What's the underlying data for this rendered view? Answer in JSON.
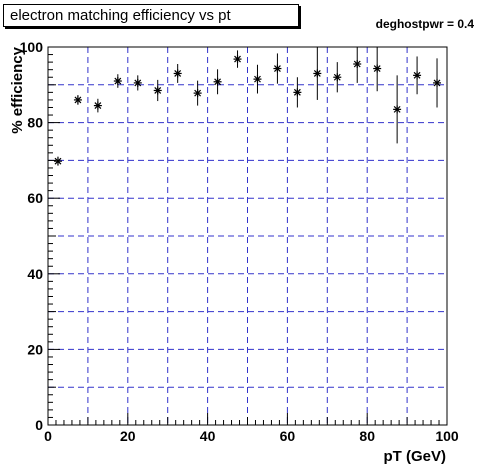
{
  "chart_data": {
    "type": "scatter",
    "title": "electron matching efficiency vs pt",
    "annotation": "deghostpwr = 0.4",
    "xlabel": "pT (GeV)",
    "ylabel": "% efficiency",
    "xlim": [
      0,
      100
    ],
    "ylim": [
      0,
      100
    ],
    "x_ticks": [
      0,
      20,
      40,
      60,
      80,
      100
    ],
    "y_ticks": [
      0,
      20,
      40,
      60,
      80,
      100
    ],
    "grid": true,
    "colors": {
      "grid": "#3333cc",
      "marker": "#000000"
    },
    "series": [
      {
        "marker": "star",
        "x": [
          2.5,
          7.5,
          12.5,
          17.5,
          22.5,
          27.5,
          32.5,
          37.5,
          42.5,
          47.5,
          52.5,
          57.5,
          62.5,
          67.5,
          72.5,
          77.5,
          82.5,
          87.5,
          92.5,
          97.5
        ],
        "y": [
          69.8,
          86.0,
          84.5,
          91.0,
          90.5,
          88.5,
          93.0,
          87.8,
          90.8,
          96.8,
          91.5,
          94.3,
          88.0,
          93.0,
          92.0,
          95.5,
          94.3,
          83.5,
          92.5,
          90.5
        ],
        "err": [
          1.2,
          1.3,
          1.8,
          1.8,
          2.0,
          2.8,
          2.5,
          3.3,
          3.3,
          2.3,
          3.8,
          4.0,
          4.0,
          7.0,
          4.0,
          5.0,
          6.0,
          9.0,
          5.0,
          6.5
        ]
      }
    ]
  }
}
